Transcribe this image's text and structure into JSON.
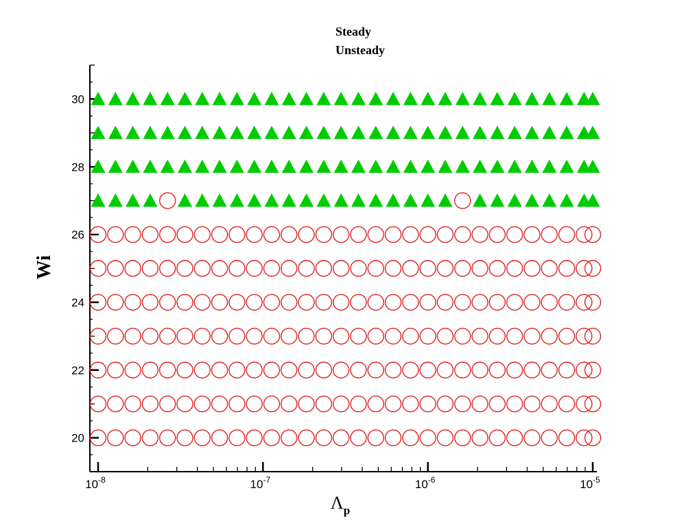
{
  "chart_data": {
    "type": "scatter",
    "xscale": "log",
    "xlim": [
      1e-08,
      1e-05
    ],
    "ylim": [
      19,
      31
    ],
    "x_ticks": [
      {
        "base": "10",
        "exp": "-8",
        "value": 1e-08
      },
      {
        "base": "10",
        "exp": "-7",
        "value": 1e-07
      },
      {
        "base": "10",
        "exp": "-6",
        "value": 1e-06
      },
      {
        "base": "10",
        "exp": "-5",
        "value": 1e-05
      }
    ],
    "y_ticks": [
      "20",
      "22",
      "24",
      "26",
      "28",
      "30"
    ],
    "xlabel": "Λ",
    "xlabel_sub": "p",
    "ylabel": "Wi",
    "legend_placement": "top-center",
    "grid": false,
    "series": [
      {
        "name": "Steady",
        "marker": "filled-triangle",
        "color": "#00cc00",
        "x": [
          1e-08,
          1.2743e-08,
          1.6238e-08,
          2.0691e-08,
          3.3598e-08,
          4.2813e-08,
          5.4556e-08,
          6.9519e-08,
          8.8587e-08,
          1.1288e-07,
          1.4384e-07,
          1.833e-07,
          2.3357e-07,
          2.9764e-07,
          3.7927e-07,
          4.8329e-07,
          6.1585e-07,
          7.8476e-07,
          1e-06,
          1.2743e-06,
          2.0691e-06,
          2.6367e-06,
          3.3598e-06,
          4.2813e-06,
          5.4556e-06,
          6.9519e-06,
          8.8587e-06,
          1e-05
        ],
        "y": [
          27,
          27,
          27,
          27,
          27,
          27,
          27,
          27,
          27,
          27,
          27,
          27,
          27,
          27,
          27,
          27,
          27,
          27,
          27,
          27,
          27,
          27,
          27,
          27,
          27,
          27,
          27,
          27
        ],
        "rows_full": [
          28,
          29,
          30
        ],
        "x_full": [
          1e-08,
          1.2743e-08,
          1.6238e-08,
          2.0691e-08,
          2.6367e-08,
          3.3598e-08,
          4.2813e-08,
          5.4556e-08,
          6.9519e-08,
          8.8587e-08,
          1.1288e-07,
          1.4384e-07,
          1.833e-07,
          2.3357e-07,
          2.9764e-07,
          3.7927e-07,
          4.8329e-07,
          6.1585e-07,
          7.8476e-07,
          1e-06,
          1.2743e-06,
          1.6238e-06,
          2.0691e-06,
          2.6367e-06,
          3.3598e-06,
          4.2813e-06,
          5.4556e-06,
          6.9519e-06,
          8.8587e-06,
          1e-05
        ]
      },
      {
        "name": "Unsteady",
        "marker": "open-circle",
        "color": "#dd2222",
        "x": [
          2.6367e-08,
          1.6238e-06
        ],
        "y": [
          27,
          27
        ],
        "rows_full": [
          20,
          21,
          22,
          23,
          24,
          25,
          26
        ],
        "x_full": [
          1e-08,
          1.2743e-08,
          1.6238e-08,
          2.0691e-08,
          2.6367e-08,
          3.3598e-08,
          4.2813e-08,
          5.4556e-08,
          6.9519e-08,
          8.8587e-08,
          1.1288e-07,
          1.4384e-07,
          1.833e-07,
          2.3357e-07,
          2.9764e-07,
          3.7927e-07,
          4.8329e-07,
          6.1585e-07,
          7.8476e-07,
          1e-06,
          1.2743e-06,
          1.6238e-06,
          2.0691e-06,
          2.6367e-06,
          3.3598e-06,
          4.2813e-06,
          5.4556e-06,
          6.9519e-06,
          8.8587e-06,
          1e-05
        ]
      }
    ]
  }
}
